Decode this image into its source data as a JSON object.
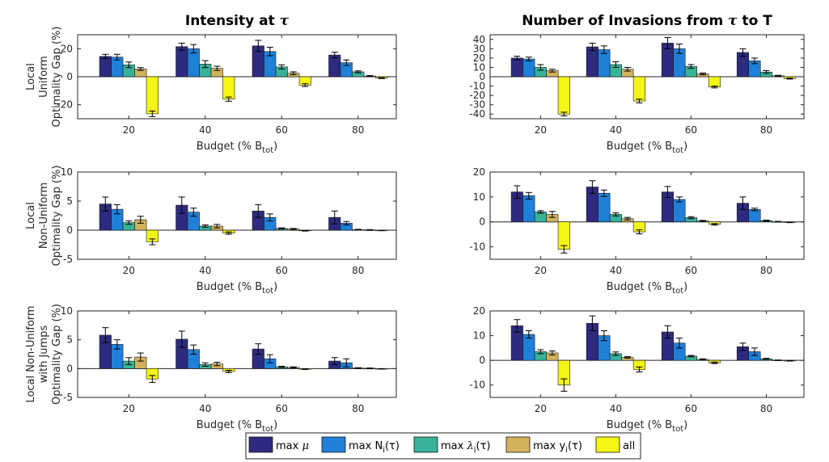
{
  "colors": {
    "max_mu": "#2c2b7f",
    "max_N": "#1f80d8",
    "max_lambda": "#38b298",
    "max_y": "#d2b25c",
    "all": "#f5f516",
    "axis": "#262626"
  },
  "legend": {
    "items": [
      {
        "key": "max_mu",
        "text": "max",
        "sym": "μ",
        "sub": "",
        "tail": ""
      },
      {
        "key": "max_N",
        "text": "max N",
        "sym": "",
        "sub": "i",
        "tail": "(τ)"
      },
      {
        "key": "max_lambda",
        "text": "max",
        "sym": "λ",
        "sub": "i",
        "tail": "(τ)"
      },
      {
        "key": "max_y",
        "text": "max y",
        "sym": "",
        "sub": "i",
        "tail": "(τ)"
      },
      {
        "key": "all",
        "text": "all",
        "sym": "",
        "sub": "",
        "tail": ""
      }
    ]
  },
  "columns": [
    {
      "title_text": "Intensity at ",
      "title_sym": "τ"
    },
    {
      "title_text": "Number of Invasions from ",
      "title_sym": "τ",
      "title_tail": " to T"
    }
  ],
  "rows": [
    {
      "ylabel_lines": [
        "Local",
        "Uniform",
        "Optimality Gap (%)"
      ]
    },
    {
      "ylabel_lines": [
        "Local",
        "Non-Uniform",
        "Optimality Gap (%)"
      ]
    },
    {
      "ylabel_lines": [
        "Local Non-Uniform",
        "with Jumps",
        "Optimality Gap (%)"
      ]
    }
  ],
  "xlabel": {
    "text": "Budget (% B",
    "sub": "tot",
    "tail": ")"
  },
  "chart_data": [
    {
      "type": "bar",
      "row": 0,
      "col": 0,
      "categories": [
        "20",
        "40",
        "60",
        "80"
      ],
      "ylim": [
        -30,
        30
      ],
      "yticks": [
        -20,
        0,
        20
      ],
      "series": [
        {
          "name": "max μ",
          "key": "max_mu",
          "values": [
            14.5,
            21.5,
            22,
            15.5
          ],
          "err": [
            1.5,
            2.5,
            4,
            2
          ]
        },
        {
          "name": "max Ni(τ)",
          "key": "max_N",
          "values": [
            14,
            20,
            18,
            10
          ],
          "err": [
            2,
            3,
            3,
            2
          ]
        },
        {
          "name": "max λi(τ)",
          "key": "max_lambda",
          "values": [
            8.5,
            9,
            7,
            3.5
          ],
          "err": [
            2,
            2.5,
            1.5,
            0.7
          ]
        },
        {
          "name": "max yi(τ)",
          "key": "max_y",
          "values": [
            5.5,
            6,
            2.5,
            0.5
          ],
          "err": [
            1,
            1.5,
            1,
            0.3
          ]
        },
        {
          "name": "all",
          "key": "all",
          "values": [
            -26.5,
            -16,
            -6,
            -1
          ],
          "err": [
            2,
            1.5,
            1,
            0.3
          ]
        }
      ]
    },
    {
      "type": "bar",
      "row": 0,
      "col": 1,
      "categories": [
        "20",
        "40",
        "60",
        "80"
      ],
      "ylim": [
        -45,
        45
      ],
      "yticks": [
        -40,
        -30,
        -20,
        -10,
        0,
        10,
        20,
        30,
        40
      ],
      "series": [
        {
          "name": "max μ",
          "key": "max_mu",
          "values": [
            20,
            32,
            36,
            26
          ],
          "err": [
            2,
            4,
            6,
            4
          ]
        },
        {
          "name": "max Ni(τ)",
          "key": "max_N",
          "values": [
            19,
            29,
            30,
            17
          ],
          "err": [
            2,
            4,
            5,
            3
          ]
        },
        {
          "name": "max λi(τ)",
          "key": "max_lambda",
          "values": [
            10,
            13,
            11,
            5
          ],
          "err": [
            3,
            3,
            2,
            1.5
          ]
        },
        {
          "name": "max yi(τ)",
          "key": "max_y",
          "values": [
            6.5,
            8,
            3,
            1
          ],
          "err": [
            1.5,
            2,
            1,
            0.5
          ]
        },
        {
          "name": "all",
          "key": "all",
          "values": [
            -40,
            -26,
            -11,
            -2
          ],
          "err": [
            2,
            2,
            1,
            0.5
          ]
        }
      ]
    },
    {
      "type": "bar",
      "row": 1,
      "col": 0,
      "categories": [
        "20",
        "40",
        "60",
        "80"
      ],
      "ylim": [
        -5,
        10
      ],
      "yticks": [
        -5,
        0,
        5,
        10
      ],
      "series": [
        {
          "name": "max μ",
          "key": "max_mu",
          "values": [
            4.5,
            4.3,
            3.3,
            2.2
          ],
          "err": [
            1.2,
            1.4,
            1.1,
            1.1
          ]
        },
        {
          "name": "max Ni(τ)",
          "key": "max_N",
          "values": [
            3.6,
            3.1,
            2.2,
            1.2
          ],
          "err": [
            0.8,
            0.7,
            0.6,
            0.3
          ]
        },
        {
          "name": "max λi(τ)",
          "key": "max_lambda",
          "values": [
            1.3,
            0.7,
            0.3,
            0.1
          ],
          "err": [
            0.3,
            0.2,
            0.1,
            0.05
          ]
        },
        {
          "name": "max yi(τ)",
          "key": "max_y",
          "values": [
            1.8,
            0.7,
            0.2,
            0.05
          ],
          "err": [
            0.6,
            0.3,
            0.1,
            0.05
          ]
        },
        {
          "name": "all",
          "key": "all",
          "values": [
            -2,
            -0.5,
            -0.1,
            -0.05
          ],
          "err": [
            0.5,
            0.2,
            0.05,
            0.03
          ]
        }
      ]
    },
    {
      "type": "bar",
      "row": 1,
      "col": 1,
      "categories": [
        "20",
        "40",
        "60",
        "80"
      ],
      "ylim": [
        -15,
        20
      ],
      "yticks": [
        -10,
        0,
        10,
        20
      ],
      "series": [
        {
          "name": "max μ",
          "key": "max_mu",
          "values": [
            12,
            14,
            12,
            7.5
          ],
          "err": [
            2.5,
            2.5,
            2.2,
            2.5
          ]
        },
        {
          "name": "max Ni(τ)",
          "key": "max_N",
          "values": [
            10.5,
            11.5,
            9,
            5
          ],
          "err": [
            1.3,
            1.3,
            1,
            0.5
          ]
        },
        {
          "name": "max λi(τ)",
          "key": "max_lambda",
          "values": [
            4,
            3,
            1.7,
            0.5
          ],
          "err": [
            0.5,
            0.6,
            0.4,
            0.2
          ]
        },
        {
          "name": "max yi(τ)",
          "key": "max_y",
          "values": [
            3,
            1.3,
            0.4,
            0.1
          ],
          "err": [
            1.2,
            0.5,
            0.2,
            0.1
          ]
        },
        {
          "name": "all",
          "key": "all",
          "values": [
            -11,
            -4,
            -1,
            -0.2
          ],
          "err": [
            1.5,
            0.8,
            0.3,
            0.1
          ]
        }
      ]
    },
    {
      "type": "bar",
      "row": 2,
      "col": 0,
      "categories": [
        "20",
        "40",
        "60",
        "80"
      ],
      "ylim": [
        -5,
        10
      ],
      "yticks": [
        -5,
        0,
        5,
        10
      ],
      "series": [
        {
          "name": "max μ",
          "key": "max_mu",
          "values": [
            5.8,
            5.1,
            3.4,
            1.3
          ],
          "err": [
            1.3,
            1.4,
            0.9,
            0.6
          ]
        },
        {
          "name": "max Ni(τ)",
          "key": "max_N",
          "values": [
            4.2,
            3.3,
            1.7,
            1
          ],
          "err": [
            0.8,
            0.8,
            0.7,
            0.7
          ]
        },
        {
          "name": "max λi(τ)",
          "key": "max_lambda",
          "values": [
            1.3,
            0.7,
            0.3,
            0.1
          ],
          "err": [
            0.6,
            0.3,
            0.1,
            0.05
          ]
        },
        {
          "name": "max yi(τ)",
          "key": "max_y",
          "values": [
            2,
            0.8,
            0.2,
            0.05
          ],
          "err": [
            0.7,
            0.3,
            0.1,
            0.05
          ]
        },
        {
          "name": "all",
          "key": "all",
          "values": [
            -1.8,
            -0.5,
            -0.1,
            -0.05
          ],
          "err": [
            0.6,
            0.2,
            0.05,
            0.03
          ]
        }
      ]
    },
    {
      "type": "bar",
      "row": 2,
      "col": 1,
      "categories": [
        "20",
        "40",
        "60",
        "80"
      ],
      "ylim": [
        -15,
        20
      ],
      "yticks": [
        -10,
        0,
        10,
        20
      ],
      "series": [
        {
          "name": "max μ",
          "key": "max_mu",
          "values": [
            14,
            15,
            11.5,
            5.5
          ],
          "err": [
            2.5,
            3,
            2.5,
            1.5
          ]
        },
        {
          "name": "max Ni(τ)",
          "key": "max_N",
          "values": [
            10.5,
            10,
            7,
            3.5
          ],
          "err": [
            1.5,
            2,
            2,
            1.5
          ]
        },
        {
          "name": "max λi(τ)",
          "key": "max_lambda",
          "values": [
            3.5,
            2.7,
            1.7,
            0.6
          ],
          "err": [
            0.8,
            0.7,
            0.3,
            0.2
          ]
        },
        {
          "name": "max yi(τ)",
          "key": "max_y",
          "values": [
            3,
            1.2,
            0.4,
            0.1
          ],
          "err": [
            0.8,
            0.3,
            0.2,
            0.05
          ]
        },
        {
          "name": "all",
          "key": "all",
          "values": [
            -10,
            -3.7,
            -1,
            -0.2
          ],
          "err": [
            2.5,
            1,
            0.3,
            0.1
          ]
        }
      ]
    }
  ]
}
